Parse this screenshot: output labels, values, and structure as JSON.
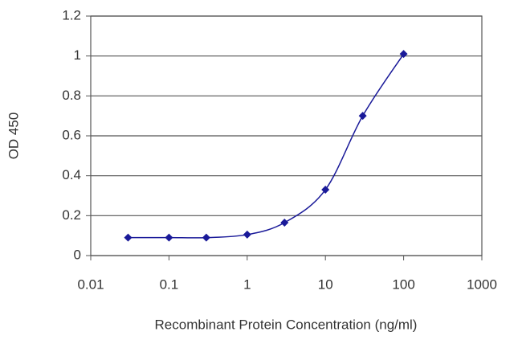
{
  "chart_data": {
    "type": "line",
    "x_label": "Recombinant Protein Concentration (ng/ml)",
    "y_label": "OD 450",
    "x": [
      0.03,
      0.1,
      0.3,
      1,
      3,
      10,
      30,
      100
    ],
    "series": [
      {
        "color": "#1a1a99",
        "values": [
          0.09,
          0.09,
          0.09,
          0.105,
          0.165,
          0.33,
          0.7,
          1.01
        ]
      }
    ],
    "x_scale": "log",
    "xlim": [
      0.01,
      1000
    ],
    "xticks": [
      0.01,
      0.1,
      1,
      10,
      100,
      1000
    ],
    "ylim": [
      0,
      1.2
    ],
    "yticks": [
      0,
      0.2,
      0.4,
      0.6,
      0.8,
      1,
      1.2
    ],
    "grid": true
  }
}
